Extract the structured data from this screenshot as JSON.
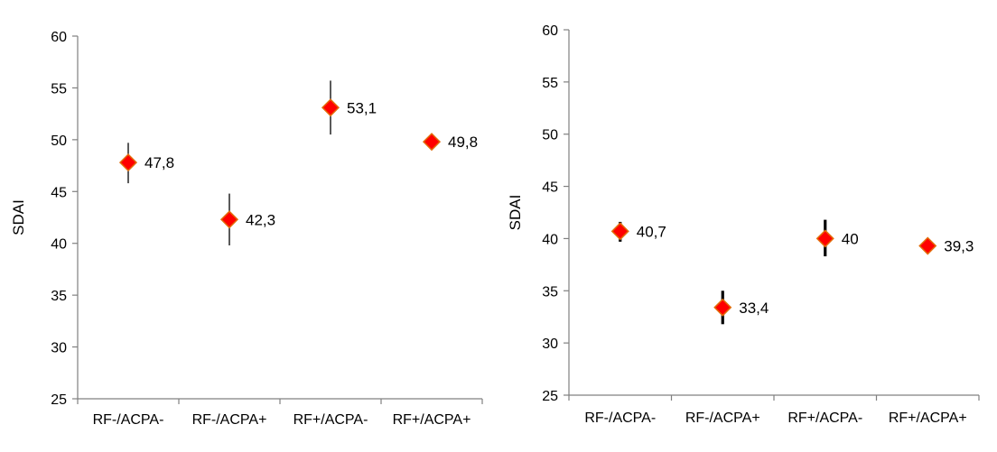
{
  "chart_data": [
    {
      "type": "scatter",
      "ylabel": "SDAI",
      "xlabel": "",
      "ylim": [
        25,
        60
      ],
      "yticks": [
        25,
        30,
        35,
        40,
        45,
        50,
        55,
        60
      ],
      "categories": [
        "RF-/ACPA-",
        "RF-/ACPA+",
        "RF+/ACPA-",
        "RF+/ACPA+"
      ],
      "values": [
        47.8,
        42.3,
        53.1,
        49.8
      ],
      "value_labels": [
        "47,8",
        "42,3",
        "53,1",
        "49,8"
      ],
      "error_low": [
        45.8,
        39.8,
        50.5,
        49.8
      ],
      "error_high": [
        49.7,
        44.8,
        55.7,
        49.8
      ],
      "marker_color": "#ff0000",
      "marker_edge_color": "#e36c0a",
      "errorbar_color": "#000000",
      "errorbar_width": "thin"
    },
    {
      "type": "scatter",
      "ylabel": "SDAI",
      "xlabel": "",
      "ylim": [
        25,
        60
      ],
      "yticks": [
        25,
        30,
        35,
        40,
        45,
        50,
        55,
        60
      ],
      "categories": [
        "RF-/ACPA-",
        "RF-/ACPA+",
        "RF+/ACPA-",
        "RF+/ACPA+"
      ],
      "values": [
        40.7,
        33.4,
        40.0,
        39.3
      ],
      "value_labels": [
        "40,7",
        "33,4",
        "40",
        "39,3"
      ],
      "error_low": [
        39.7,
        31.8,
        38.3,
        39.3
      ],
      "error_high": [
        41.6,
        35.0,
        41.8,
        39.3
      ],
      "marker_color": "#ff0000",
      "marker_edge_color": "#e36c0a",
      "errorbar_color": "#000000",
      "errorbar_width": "thick"
    }
  ]
}
